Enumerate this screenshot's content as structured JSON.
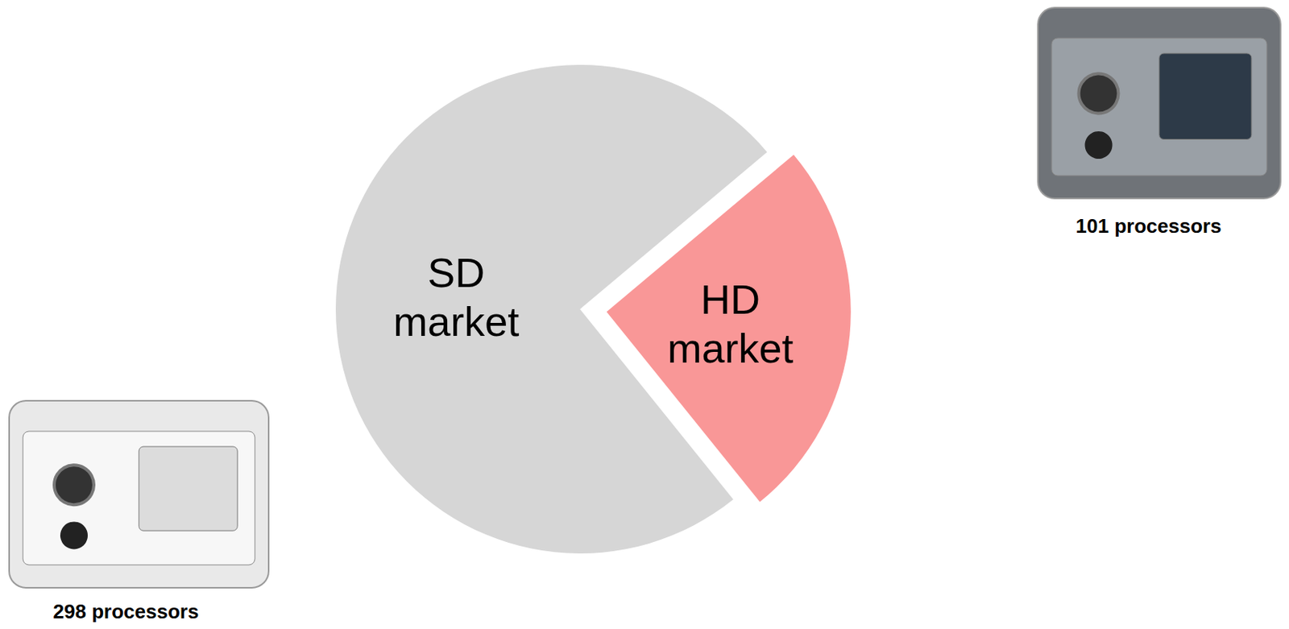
{
  "chart_data": {
    "type": "pie",
    "categories": [
      "HD market",
      "SD market"
    ],
    "values": [
      101,
      298
    ],
    "value_labels": [
      "101 processors",
      "298 processors"
    ],
    "colors": [
      "#f99797",
      "#d6d6d6"
    ],
    "data_labels": true
  }
}
